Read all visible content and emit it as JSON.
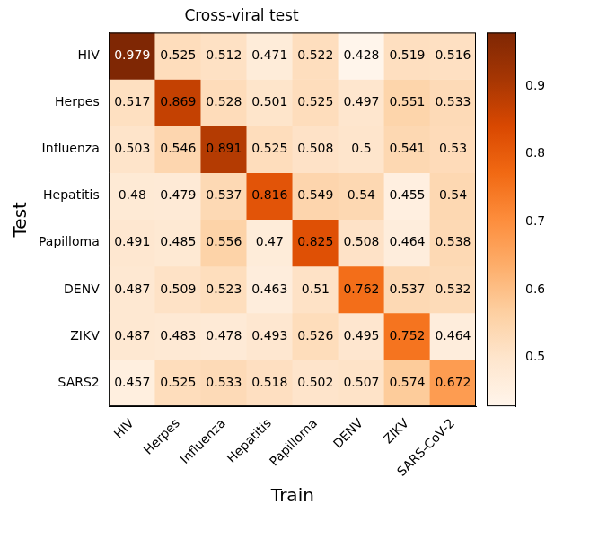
{
  "chart_data": {
    "type": "heatmap",
    "title": "Cross-viral test",
    "x_label": "Train",
    "y_label": "Test",
    "x": [
      "HIV",
      "Herpes",
      "Influenza",
      "Hepatitis",
      "Papilloma",
      "DENV",
      "ZIKV",
      "SARS-CoV-2"
    ],
    "y": [
      "HIV",
      "Herpes",
      "Influenza",
      "Hepatitis",
      "Papilloma",
      "DENV",
      "ZIKV",
      "SARS2"
    ],
    "cells": [
      [
        0.979,
        0.525,
        0.512,
        0.471,
        0.522,
        0.428,
        0.519,
        0.516
      ],
      [
        0.517,
        0.869,
        0.528,
        0.501,
        0.525,
        0.497,
        0.551,
        0.533
      ],
      [
        0.503,
        0.546,
        0.891,
        0.525,
        0.508,
        0.5,
        0.541,
        0.53
      ],
      [
        0.48,
        0.479,
        0.537,
        0.816,
        0.549,
        0.54,
        0.455,
        0.54
      ],
      [
        0.491,
        0.485,
        0.556,
        0.47,
        0.825,
        0.508,
        0.464,
        0.538
      ],
      [
        0.487,
        0.509,
        0.523,
        0.463,
        0.51,
        0.762,
        0.537,
        0.532
      ],
      [
        0.487,
        0.483,
        0.478,
        0.493,
        0.526,
        0.495,
        0.752,
        0.464
      ],
      [
        0.457,
        0.525,
        0.533,
        0.518,
        0.502,
        0.507,
        0.574,
        0.672
      ]
    ],
    "color": "Oranges",
    "colorbar": {
      "lim": [
        0.428,
        0.979
      ],
      "ticks": [
        0.5,
        0.6,
        0.7,
        0.8,
        0.9
      ]
    },
    "data_labels": true,
    "grid": false
  }
}
